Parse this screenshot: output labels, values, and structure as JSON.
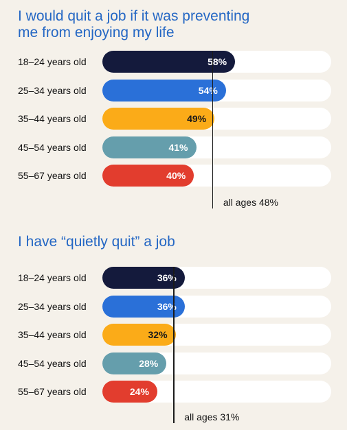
{
  "chart_data": [
    {
      "type": "bar",
      "orientation": "horizontal",
      "title": "I would quit a job if it was preventing me from enjoying my life",
      "title_lines": [
        "I would quit a job if it was preventing",
        "me from enjoying my life"
      ],
      "categories": [
        "18–24 years old",
        "25–34 years old",
        "35–44 years old",
        "45–54 years old",
        "55–67 years old"
      ],
      "values": [
        58,
        54,
        49,
        41,
        40
      ],
      "value_labels": [
        "58%",
        "54%",
        "49%",
        "41%",
        "40%"
      ],
      "xlim": [
        0,
        100
      ],
      "reference_line": {
        "value": 48,
        "label": "all ages 48%"
      }
    },
    {
      "type": "bar",
      "orientation": "horizontal",
      "title": "I have “quietly quit” a job",
      "title_lines": [
        "I have “quietly quit” a job"
      ],
      "categories": [
        "18–24 years old",
        "25–34 years old",
        "35–44 years old",
        "45–54 years old",
        "55–67 years old"
      ],
      "values": [
        36,
        36,
        32,
        28,
        24
      ],
      "value_labels": [
        "36%",
        "36%",
        "32%",
        "28%",
        "24%"
      ],
      "xlim": [
        0,
        100
      ],
      "reference_line": {
        "value": 31,
        "label": "all ages 31%"
      }
    }
  ],
  "colors": {
    "title": "#2467c4",
    "track": "#ffffff",
    "bars": [
      "#141a3c",
      "#2a70d8",
      "#fbab18",
      "#659eac",
      "#e23d2e"
    ],
    "bar_value_text": [
      "#ffffff",
      "#ffffff",
      "#1a1a1a",
      "#ffffff",
      "#ffffff"
    ]
  }
}
